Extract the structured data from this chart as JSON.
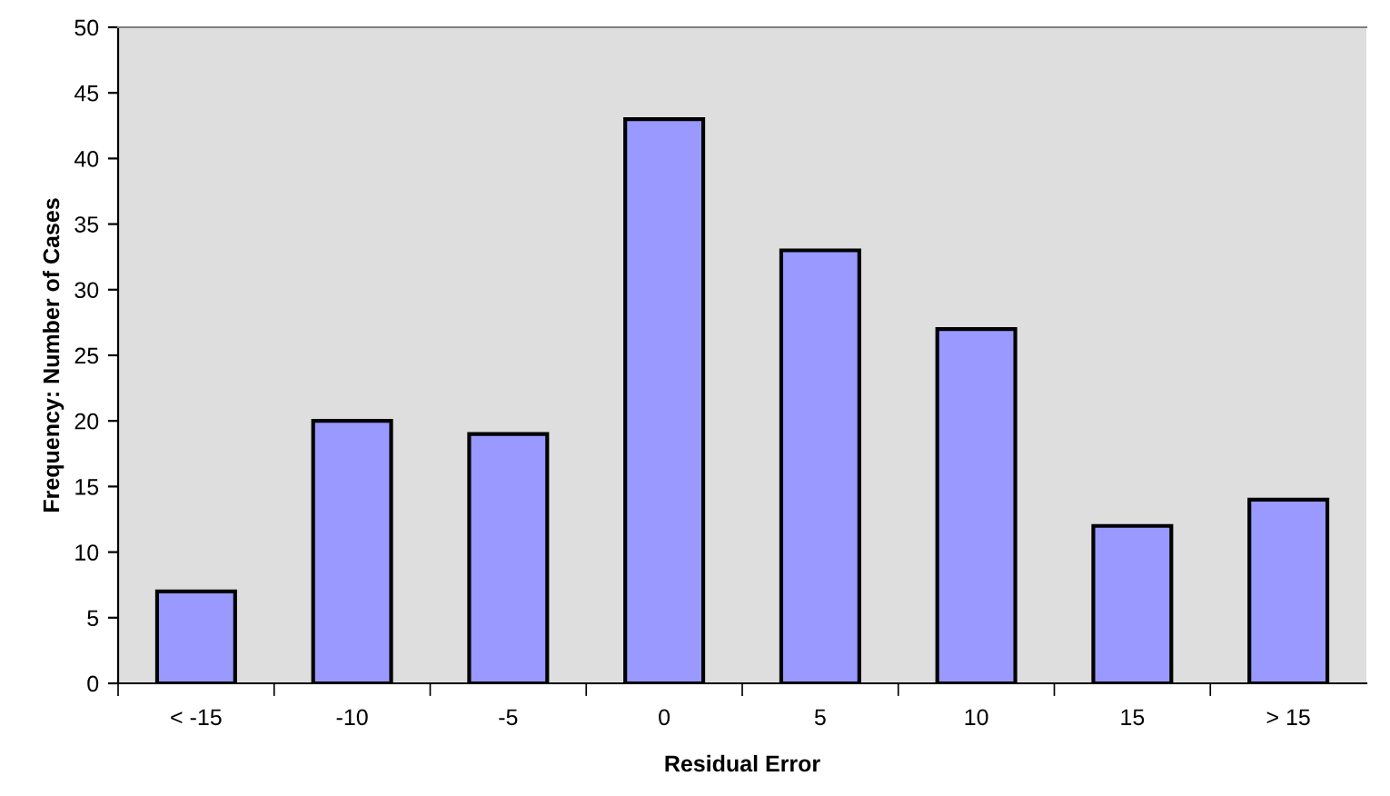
{
  "chart_data": {
    "type": "bar",
    "xlabel": "Residual Error",
    "ylabel": "Frequency: Number of Cases",
    "categories": [
      "< -15",
      "-10",
      "-5",
      "0",
      "5",
      "10",
      "15",
      "> 15"
    ],
    "values": [
      7,
      20,
      19,
      43,
      33,
      27,
      12,
      14
    ],
    "color": "#9999ff",
    "ylim": [
      0,
      50
    ],
    "yticks": [
      0,
      5,
      10,
      15,
      20,
      25,
      30,
      35,
      40,
      45,
      50
    ],
    "grid": false,
    "legend": false
  }
}
